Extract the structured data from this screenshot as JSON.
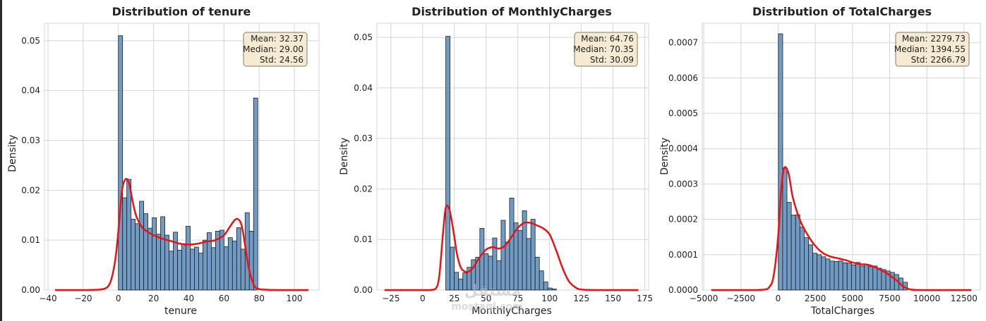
{
  "colors": {
    "bar": "#6f9bc5",
    "bar_edge": "#1f1f1f",
    "kde": "#ee1111",
    "grid": "#d6d6d6",
    "stat_box": "#f6ead2",
    "stat_edge": "#8a7a62"
  },
  "watermark": {
    "line1": "مستقل",
    "line2": "mostaql.com"
  },
  "chart_data": [
    {
      "type": "bar",
      "title": "Distribution of tenure",
      "xlabel": "tenure",
      "ylabel": "Density",
      "xlim": [
        -42,
        114
      ],
      "ylim": [
        0,
        0.0535
      ],
      "xticks": [
        -40,
        -20,
        0,
        20,
        40,
        60,
        80,
        100
      ],
      "xtick_labels": [
        "−40",
        "−20",
        "0",
        "20",
        "40",
        "60",
        "80",
        "100"
      ],
      "yticks": [
        0,
        0.01,
        0.02,
        0.03,
        0.04,
        0.05
      ],
      "ytick_labels": [
        "0.00",
        "0.01",
        "0.02",
        "0.03",
        "0.04",
        "0.05"
      ],
      "bin_start": 0,
      "bin_width": 2.4,
      "values": [
        0.051,
        0.0185,
        0.0222,
        0.0142,
        0.0133,
        0.0178,
        0.0153,
        0.0124,
        0.0145,
        0.0112,
        0.0147,
        0.011,
        0.0078,
        0.0116,
        0.008,
        0.0093,
        0.0128,
        0.0082,
        0.0086,
        0.0074,
        0.01,
        0.0115,
        0.0085,
        0.0118,
        0.012,
        0.0087,
        0.0105,
        0.0098,
        0.0125,
        0.0082,
        0.0155,
        0.0118,
        0.0385
      ],
      "kde": {
        "x": [
          -36,
          -20,
          -10,
          -5,
          -2,
          0,
          2,
          4,
          6,
          8,
          10,
          13,
          16,
          20,
          25,
          30,
          35,
          40,
          45,
          50,
          55,
          60,
          63,
          66,
          68,
          70,
          72,
          74,
          77,
          80,
          85,
          95,
          108
        ],
        "y": [
          0,
          0,
          0.0001,
          0.0012,
          0.0055,
          0.0118,
          0.0198,
          0.0222,
          0.0215,
          0.018,
          0.015,
          0.0128,
          0.0118,
          0.011,
          0.0103,
          0.0098,
          0.0093,
          0.0091,
          0.0093,
          0.0097,
          0.01,
          0.011,
          0.0125,
          0.014,
          0.0142,
          0.013,
          0.009,
          0.0045,
          0.001,
          0.0002,
          5e-05,
          0,
          0
        ]
      },
      "stats": {
        "mean": "Mean: 32.37",
        "median": "Median: 29.00",
        "std": "Std: 24.56"
      }
    },
    {
      "type": "bar",
      "title": "Distribution of MonthlyCharges",
      "xlabel": "MonthlyCharges",
      "ylabel": "Density",
      "xlim": [
        -36,
        178
      ],
      "ylim": [
        0,
        0.0528
      ],
      "xticks": [
        -25,
        0,
        25,
        50,
        75,
        100,
        125,
        150,
        175
      ],
      "xtick_labels": [
        "−25",
        "0",
        "25",
        "50",
        "75",
        "100",
        "125",
        "150",
        "175"
      ],
      "yticks": [
        0,
        0.01,
        0.02,
        0.03,
        0.04,
        0.05
      ],
      "ytick_labels": [
        "0.00",
        "0.01",
        "0.02",
        "0.03",
        "0.04",
        "0.05"
      ],
      "bin_start": 18.25,
      "bin_width": 3.35,
      "values": [
        0.0502,
        0.0085,
        0.0035,
        0.0022,
        0.0034,
        0.0045,
        0.006,
        0.0065,
        0.0122,
        0.0072,
        0.0067,
        0.0103,
        0.0058,
        0.0138,
        0.0095,
        0.0182,
        0.0133,
        0.0118,
        0.0157,
        0.0102,
        0.014,
        0.0065,
        0.0038,
        0.0016,
        0.0004,
        0.0002
      ],
      "kde": {
        "x": [
          -30,
          0,
          5,
          10,
          13,
          16,
          18,
          20,
          22,
          25,
          27,
          30,
          33,
          36,
          40,
          45,
          50,
          55,
          60,
          65,
          70,
          75,
          80,
          85,
          90,
          95,
          100,
          105,
          110,
          115,
          120,
          125,
          140,
          170
        ],
        "y": [
          0,
          0,
          0,
          0.0002,
          0.0025,
          0.011,
          0.016,
          0.0166,
          0.015,
          0.0105,
          0.0072,
          0.0045,
          0.0037,
          0.0036,
          0.0045,
          0.0065,
          0.008,
          0.0085,
          0.0082,
          0.0088,
          0.0105,
          0.0123,
          0.0133,
          0.0133,
          0.0128,
          0.0122,
          0.011,
          0.008,
          0.0045,
          0.0018,
          0.0006,
          0.0001,
          0,
          0
        ]
      },
      "stats": {
        "mean": "Mean: 64.76",
        "median": "Median: 70.35",
        "std": "Std: 30.09"
      }
    },
    {
      "type": "bar",
      "title": "Distribution of TotalCharges",
      "xlabel": "TotalCharges",
      "ylabel": "Density",
      "xlim": [
        -5100,
        13600
      ],
      "ylim": [
        0,
        0.000755
      ],
      "xticks": [
        -5000,
        -2500,
        0,
        2500,
        5000,
        7500,
        10000,
        12500
      ],
      "xtick_labels": [
        "−5000",
        "−2500",
        "0",
        "2500",
        "5000",
        "7500",
        "10000",
        "12500"
      ],
      "yticks": [
        0,
        0.0001,
        0.0002,
        0.0003,
        0.0004,
        0.0005,
        0.0006,
        0.0007
      ],
      "ytick_labels": [
        "0.0000",
        "0.0001",
        "0.0002",
        "0.0003",
        "0.0004",
        "0.0005",
        "0.0006",
        "0.0007"
      ],
      "bin_start": 18.8,
      "bin_width": 289,
      "values": [
        0.000725,
        0.000345,
        0.000248,
        0.000212,
        0.000213,
        0.000178,
        0.000148,
        0.000128,
        0.000104,
        0.0001,
        9.4e-05,
        8.8e-05,
        8.2e-05,
        8.1e-05,
        8.2e-05,
        7.7e-05,
        7.6e-05,
        7.1e-05,
        7.8e-05,
        6.8e-05,
        7.2e-05,
        6.6e-05,
        6.8e-05,
        6.2e-05,
        5.8e-05,
        5.4e-05,
        5e-05,
        4.4e-05,
        3.4e-05,
        2.2e-05
      ],
      "kde": {
        "x": [
          -4500,
          -2000,
          -1000,
          -600,
          -300,
          0,
          200,
          400,
          700,
          1000,
          1500,
          2000,
          2500,
          3000,
          3500,
          4000,
          4500,
          5000,
          5500,
          6000,
          6500,
          7000,
          7500,
          8000,
          8300,
          8600,
          9000,
          10000,
          13000
        ],
        "y": [
          0,
          0,
          1e-06,
          8e-06,
          4e-05,
          0.00015,
          0.00028,
          0.000345,
          0.00033,
          0.00026,
          0.000195,
          0.000155,
          0.000125,
          0.000105,
          9.5e-05,
          9e-05,
          8.5e-05,
          7.8e-05,
          7.3e-05,
          7.2e-05,
          6.5e-05,
          5.5e-05,
          4.2e-05,
          2.6e-05,
          1.4e-05,
          6e-06,
          1e-06,
          0,
          0
        ]
      },
      "stats": {
        "mean": "Mean: 2279.73",
        "median": "Median: 1394.55",
        "std": "Std: 2266.79"
      }
    }
  ]
}
